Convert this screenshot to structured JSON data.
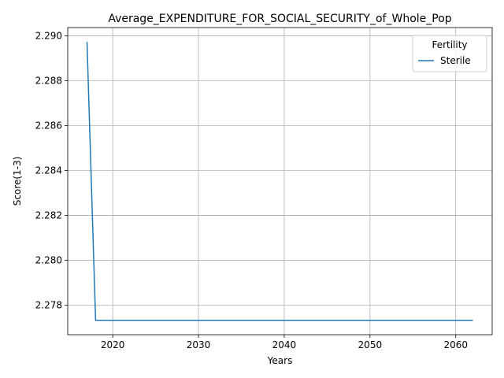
{
  "chart_data": {
    "type": "line",
    "title": "Average_EXPENDITURE_FOR_SOCIAL_SECURITY_of_Whole_Pop",
    "xlabel": "Years",
    "ylabel": "Score(1-3)",
    "xlim": [
      2014.75,
      2064.25
    ],
    "ylim": [
      2.27668,
      2.29037
    ],
    "x_ticks": [
      2020,
      2030,
      2040,
      2050,
      2060
    ],
    "y_ticks": [
      2.278,
      2.28,
      2.282,
      2.284,
      2.286,
      2.288,
      2.29
    ],
    "y_tick_labels": [
      "2.278",
      "2.280",
      "2.282",
      "2.284",
      "2.286",
      "2.288",
      "2.290"
    ],
    "grid": true,
    "legend": {
      "title": "Fertility",
      "placement": "top-right"
    },
    "series": [
      {
        "name": "Sterile",
        "color": "#1f77b4",
        "x": [
          2017,
          2018,
          2020,
          2030,
          2040,
          2050,
          2060,
          2062
        ],
        "y": [
          2.28973,
          2.27732,
          2.27732,
          2.27732,
          2.27732,
          2.27732,
          2.27732,
          2.27732
        ]
      }
    ]
  }
}
